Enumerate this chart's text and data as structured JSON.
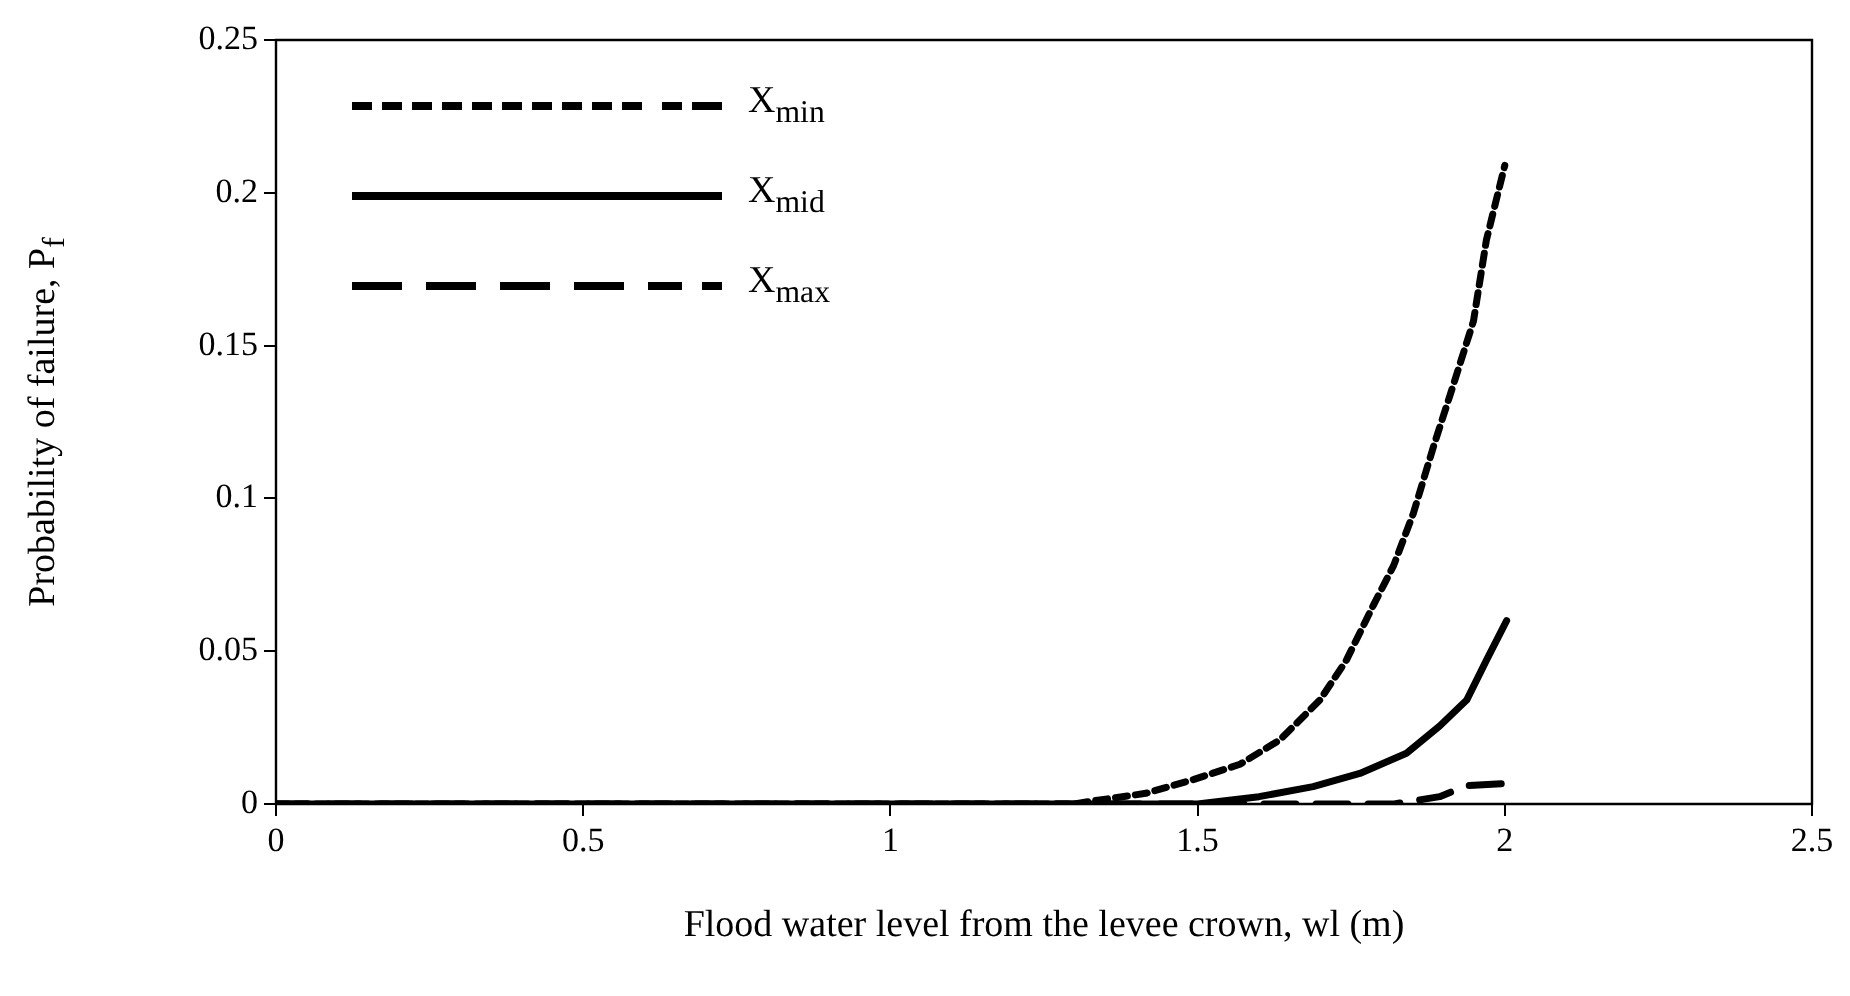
{
  "chart_data": {
    "type": "line",
    "xlabel": "Flood water level from the levee crown, wl (m)",
    "ylabel": "Probability of failure, P$_{f}$",
    "xlim": [
      0,
      2.5
    ],
    "xticks": [
      0,
      0.5,
      1,
      1.5,
      2,
      2.5
    ],
    "ylim": [
      0,
      0.25
    ],
    "yticks": [
      0,
      0.05,
      0.1,
      0.15,
      0.2,
      0.25
    ],
    "grid": false,
    "legend": "top left",
    "marker": "none",
    "series": [
      {
        "name": "X$_{min}$",
        "color": "#000000",
        "line_style": "dotted",
        "x": [
          0,
          0.5,
          1,
          1.3,
          1.33,
          1.416,
          1.493,
          1.569,
          1.634,
          1.699,
          1.742,
          1.786,
          1.819,
          1.851,
          1.884,
          1.916,
          1.949,
          1.97,
          2.0
        ],
        "values": [
          0,
          0,
          0,
          0,
          0.001,
          0.0035,
          0.008,
          0.013,
          0.021,
          0.034,
          0.047,
          0.065,
          0.078,
          0.095,
          0.117,
          0.137,
          0.158,
          0.1845,
          0.209
        ]
      },
      {
        "name": "X$_{mid}$",
        "color": "#000000",
        "line_style": "solid",
        "x": [
          0,
          0.5,
          1,
          1.5,
          1.6,
          1.688,
          1.764,
          1.84,
          1.894,
          1.938,
          1.97,
          2.003
        ],
        "values": [
          0,
          0,
          0,
          0,
          0.0024,
          0.0057,
          0.01,
          0.0166,
          0.0255,
          0.034,
          0.047,
          0.06
        ]
      },
      {
        "name": "X$_{max}$",
        "color": "#000000",
        "line_style": "dashed",
        "x": [
          0,
          0.5,
          1,
          1.5,
          1.82,
          1.894,
          1.938,
          2.0
        ],
        "values": [
          0,
          0,
          0,
          0,
          0,
          0.0024,
          0.006,
          0.0067
        ]
      }
    ]
  }
}
